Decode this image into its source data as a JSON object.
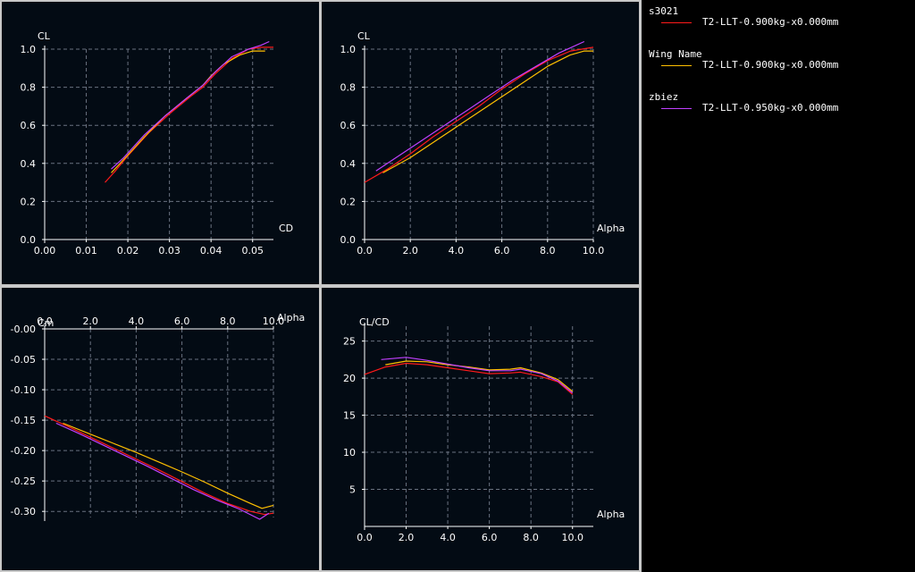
{
  "colors": {
    "s3021": "#ff1a1a",
    "wing": "#ffc000",
    "zbiez": "#c040ff",
    "axis": "#ffffff",
    "grid": "#6a7280",
    "panel_bg": "#030b14"
  },
  "legend": {
    "items": [
      {
        "name": "s3021",
        "label": "T2-LLT-0.900kg-x0.000mm",
        "color": "#ff1a1a"
      },
      {
        "name": "Wing Name",
        "label": "T2-LLT-0.900kg-x0.000mm",
        "color": "#ffc000"
      },
      {
        "name": "zbiez",
        "label": "T2-LLT-0.950kg-x0.000mm",
        "color": "#c040ff"
      }
    ]
  },
  "chart_data": [
    {
      "type": "line",
      "ylabel": "CL",
      "xlabel": "CD",
      "xlim": [
        0,
        0.055
      ],
      "ylim": [
        0,
        1.0
      ],
      "x_ticks": [
        "0.00",
        "0.01",
        "0.02",
        "0.03",
        "0.04",
        "0.05"
      ],
      "y_ticks": [
        "0.0",
        "0.2",
        "0.4",
        "0.6",
        "0.8",
        "1.0"
      ],
      "series": [
        {
          "name": "s3021",
          "points": [
            [
              0.0145,
              0.3
            ],
            [
              0.017,
              0.36
            ],
            [
              0.02,
              0.44
            ],
            [
              0.025,
              0.56
            ],
            [
              0.03,
              0.66
            ],
            [
              0.035,
              0.75
            ],
            [
              0.038,
              0.8
            ],
            [
              0.041,
              0.87
            ],
            [
              0.045,
              0.95
            ],
            [
              0.049,
              1.0
            ],
            [
              0.052,
              1.01
            ],
            [
              0.055,
              1.01
            ]
          ]
        },
        {
          "name": "Wing Name",
          "points": [
            [
              0.016,
              0.35
            ],
            [
              0.019,
              0.42
            ],
            [
              0.024,
              0.54
            ],
            [
              0.029,
              0.65
            ],
            [
              0.034,
              0.74
            ],
            [
              0.038,
              0.81
            ],
            [
              0.04,
              0.86
            ],
            [
              0.043,
              0.92
            ],
            [
              0.047,
              0.97
            ],
            [
              0.05,
              0.99
            ],
            [
              0.053,
              0.99
            ]
          ]
        },
        {
          "name": "zbiez",
          "points": [
            [
              0.016,
              0.37
            ],
            [
              0.019,
              0.43
            ],
            [
              0.024,
              0.55
            ],
            [
              0.029,
              0.65
            ],
            [
              0.034,
              0.74
            ],
            [
              0.038,
              0.81
            ],
            [
              0.041,
              0.88
            ],
            [
              0.045,
              0.96
            ],
            [
              0.049,
              1.0
            ],
            [
              0.052,
              1.02
            ],
            [
              0.054,
              1.04
            ]
          ]
        }
      ]
    },
    {
      "type": "line",
      "ylabel": "CL",
      "xlabel": "Alpha",
      "xlim": [
        0,
        10
      ],
      "ylim": [
        0,
        1.0
      ],
      "x_ticks": [
        "0.0",
        "2.0",
        "4.0",
        "6.0",
        "8.0",
        "10.0"
      ],
      "y_ticks": [
        "0.0",
        "0.2",
        "0.4",
        "0.6",
        "0.8",
        "1.0"
      ],
      "series": [
        {
          "name": "s3021",
          "points": [
            [
              0,
              0.3
            ],
            [
              1,
              0.37
            ],
            [
              2,
              0.45
            ],
            [
              3,
              0.54
            ],
            [
              4,
              0.62
            ],
            [
              5,
              0.7
            ],
            [
              6,
              0.79
            ],
            [
              7,
              0.87
            ],
            [
              8,
              0.94
            ],
            [
              9,
              0.99
            ],
            [
              10,
              1.01
            ]
          ]
        },
        {
          "name": "Wing Name",
          "points": [
            [
              0.8,
              0.35
            ],
            [
              2,
              0.43
            ],
            [
              3,
              0.51
            ],
            [
              4,
              0.59
            ],
            [
              5,
              0.67
            ],
            [
              6,
              0.75
            ],
            [
              7,
              0.83
            ],
            [
              8,
              0.91
            ],
            [
              9,
              0.97
            ],
            [
              9.6,
              0.99
            ],
            [
              10,
              0.99
            ]
          ]
        },
        {
          "name": "zbiez",
          "points": [
            [
              0.5,
              0.36
            ],
            [
              1.5,
              0.44
            ],
            [
              2.5,
              0.52
            ],
            [
              3.5,
              0.6
            ],
            [
              4.5,
              0.68
            ],
            [
              5.5,
              0.76
            ],
            [
              6.5,
              0.84
            ],
            [
              7.5,
              0.91
            ],
            [
              8.5,
              0.98
            ],
            [
              9.6,
              1.04
            ]
          ]
        }
      ]
    },
    {
      "type": "line",
      "ylabel": "Cm",
      "xlabel": "Alpha",
      "xlim": [
        0,
        10
      ],
      "ylim": [
        -0.31,
        0.0
      ],
      "x_ticks": [
        "0.0",
        "2.0",
        "4.0",
        "6.0",
        "8.0",
        "10.0"
      ],
      "y_ticks": [
        "-0.00",
        "-0.05",
        "-0.10",
        "-0.15",
        "-0.20",
        "-0.25",
        "-0.30"
      ],
      "series": [
        {
          "name": "s3021",
          "points": [
            [
              0,
              -0.143
            ],
            [
              1,
              -0.16
            ],
            [
              2,
              -0.178
            ],
            [
              3,
              -0.196
            ],
            [
              4,
              -0.214
            ],
            [
              5,
              -0.232
            ],
            [
              6,
              -0.251
            ],
            [
              7,
              -0.27
            ],
            [
              8,
              -0.287
            ],
            [
              9,
              -0.3
            ],
            [
              9.6,
              -0.305
            ],
            [
              10,
              -0.303
            ]
          ]
        },
        {
          "name": "Wing Name",
          "points": [
            [
              0.8,
              -0.155
            ],
            [
              2,
              -0.173
            ],
            [
              3,
              -0.188
            ],
            [
              4,
              -0.203
            ],
            [
              5,
              -0.219
            ],
            [
              6,
              -0.235
            ],
            [
              7,
              -0.252
            ],
            [
              8,
              -0.27
            ],
            [
              9,
              -0.287
            ],
            [
              9.5,
              -0.295
            ],
            [
              10,
              -0.29
            ]
          ]
        },
        {
          "name": "zbiez",
          "points": [
            [
              0.5,
              -0.155
            ],
            [
              1.5,
              -0.172
            ],
            [
              2.5,
              -0.19
            ],
            [
              3.5,
              -0.208
            ],
            [
              4.5,
              -0.226
            ],
            [
              5.5,
              -0.245
            ],
            [
              6.5,
              -0.264
            ],
            [
              7.5,
              -0.281
            ],
            [
              8.5,
              -0.296
            ],
            [
              9.4,
              -0.313
            ],
            [
              9.8,
              -0.303
            ]
          ]
        }
      ]
    },
    {
      "type": "line",
      "ylabel": "CL/CD",
      "xlabel": "Alpha",
      "xlim": [
        0,
        11
      ],
      "ylim": [
        0,
        27
      ],
      "x_ticks": [
        "0.0",
        "2.0",
        "4.0",
        "6.0",
        "8.0",
        "10.0"
      ],
      "y_ticks": [
        "5",
        "10",
        "15",
        "20",
        "25"
      ],
      "series": [
        {
          "name": "s3021",
          "points": [
            [
              0,
              20.5
            ],
            [
              1,
              21.5
            ],
            [
              2,
              22.0
            ],
            [
              3,
              21.8
            ],
            [
              4,
              21.4
            ],
            [
              5,
              21.0
            ],
            [
              6,
              20.6
            ],
            [
              7,
              20.7
            ],
            [
              7.5,
              20.8
            ],
            [
              8.5,
              20.2
            ],
            [
              9.3,
              19.5
            ],
            [
              10,
              17.8
            ]
          ]
        },
        {
          "name": "Wing Name",
          "points": [
            [
              1,
              21.8
            ],
            [
              2,
              22.3
            ],
            [
              3,
              22.2
            ],
            [
              4,
              21.8
            ],
            [
              5,
              21.5
            ],
            [
              6,
              21.1
            ],
            [
              7,
              21.2
            ],
            [
              7.5,
              21.4
            ],
            [
              8.5,
              20.7
            ],
            [
              9.3,
              19.8
            ],
            [
              10,
              18.2
            ]
          ]
        },
        {
          "name": "zbiez",
          "points": [
            [
              0.8,
              22.5
            ],
            [
              2,
              22.8
            ],
            [
              3,
              22.4
            ],
            [
              4,
              21.9
            ],
            [
              5,
              21.4
            ],
            [
              6,
              21.0
            ],
            [
              7,
              21.0
            ],
            [
              7.5,
              21.2
            ],
            [
              8.5,
              20.6
            ],
            [
              9.3,
              19.6
            ],
            [
              10,
              18.0
            ]
          ]
        }
      ]
    }
  ]
}
